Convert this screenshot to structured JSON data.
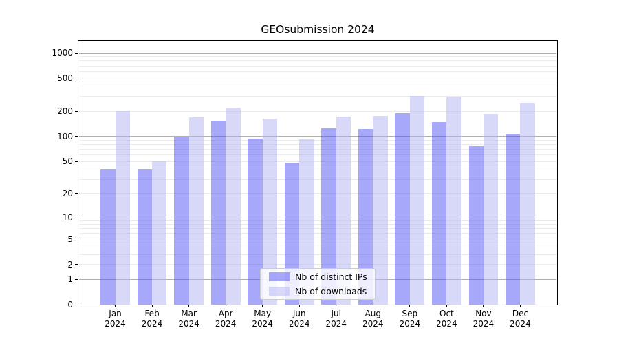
{
  "chart_data": {
    "type": "bar",
    "title": "GEOsubmission 2024",
    "categories": [
      "Jan",
      "Feb",
      "Mar",
      "Apr",
      "May",
      "Jun",
      "Jul",
      "Aug",
      "Sep",
      "Oct",
      "Nov",
      "Dec"
    ],
    "x_tick_year_line": "2024",
    "series": [
      {
        "name": "Nb of distinct IPs",
        "color": "rgba(81,81,245,0.5)",
        "values": [
          40,
          40,
          100,
          155,
          95,
          48,
          125,
          122,
          190,
          150,
          77,
          108
        ]
      },
      {
        "name": "Nb of downloads",
        "color": "rgba(177,177,241,0.5)",
        "values": [
          200,
          50,
          170,
          220,
          165,
          92,
          173,
          176,
          308,
          300,
          188,
          254
        ]
      }
    ],
    "y_axis": {
      "scale": "symlog",
      "ticks": [
        0,
        1,
        2,
        5,
        10,
        20,
        50,
        100,
        200,
        500,
        1000
      ],
      "ylim": [
        0,
        1380
      ],
      "minor_gridlines": true
    },
    "xlabel": "",
    "ylabel": "",
    "grid": "on",
    "legend_position": "lower center",
    "colors": {
      "major_grid": "#b0b0b0",
      "minor_grid": "#ebebeb",
      "axis": "#000000",
      "background": "#ffffff"
    }
  }
}
